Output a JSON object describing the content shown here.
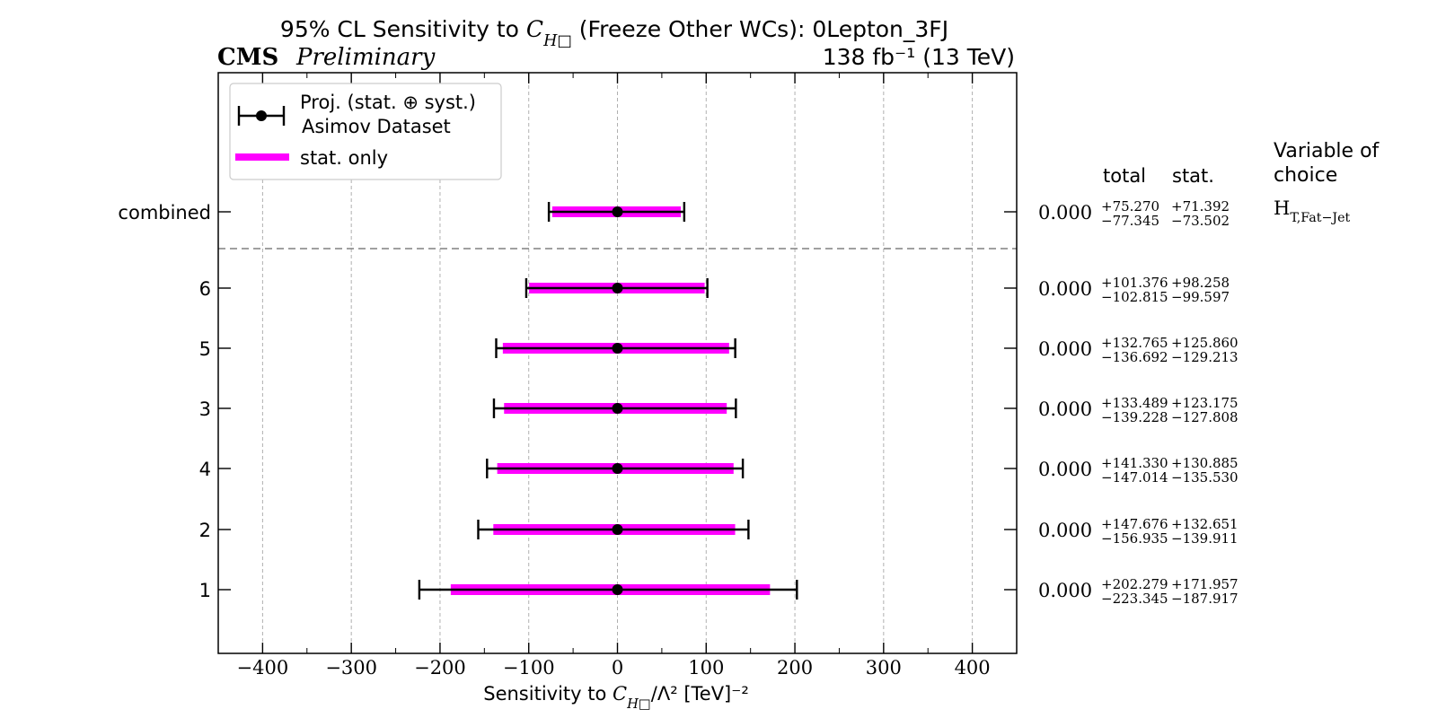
{
  "header": {
    "title": "95% CL Sensitivity to C_H□ (Freeze Other WCs): 0Lepton_3FJ",
    "experiment": "CMS",
    "status": "Preliminary",
    "lumi": "138 fb⁻¹ (13 TeV)"
  },
  "legend": {
    "proj_line1": "Proj. (stat. ⊕ syst.)",
    "proj_line2": "Asimov Dataset",
    "stat_label": "stat. only",
    "placement": "top-left"
  },
  "table": {
    "total_header": "total",
    "stat_header": "stat.",
    "variable_header_line1": "Variable of",
    "variable_header_line2": "choice",
    "variable": "H_T,Fat−Jet"
  },
  "colors": {
    "stat_band": "#ff00ff",
    "total_bar": "#000000",
    "separator": "#808080",
    "grid": "#b0b0b0"
  },
  "chart_data": {
    "type": "errorbar",
    "title": "95% CL Sensitivity to C_H□ (Freeze Other WCs): 0Lepton_3FJ",
    "xlabel": "Sensitivity to C_H□/Λ² [TeV]⁻²",
    "xlim": [
      -450,
      450
    ],
    "xticks": [
      -400,
      -300,
      -200,
      -100,
      0,
      100,
      200,
      300,
      400
    ],
    "grid": true,
    "rows": [
      {
        "label": "combined",
        "center": 0.0,
        "center_text": "0.000",
        "total_up": 75.27,
        "total_down": -77.345,
        "stat_up": 71.392,
        "stat_down": -73.502,
        "total_up_text": "+75.270",
        "total_down_text": "−77.345",
        "stat_up_text": "+71.392",
        "stat_down_text": "−73.502"
      },
      {
        "label": "6",
        "center": 0.0,
        "center_text": "0.000",
        "total_up": 101.376,
        "total_down": -102.815,
        "stat_up": 98.258,
        "stat_down": -99.597,
        "total_up_text": "+101.376",
        "total_down_text": "−102.815",
        "stat_up_text": "+98.258",
        "stat_down_text": "−99.597"
      },
      {
        "label": "5",
        "center": 0.0,
        "center_text": "0.000",
        "total_up": 132.765,
        "total_down": -136.692,
        "stat_up": 125.86,
        "stat_down": -129.213,
        "total_up_text": "+132.765",
        "total_down_text": "−136.692",
        "stat_up_text": "+125.860",
        "stat_down_text": "−129.213"
      },
      {
        "label": "3",
        "center": 0.0,
        "center_text": "0.000",
        "total_up": 133.489,
        "total_down": -139.228,
        "stat_up": 123.175,
        "stat_down": -127.808,
        "total_up_text": "+133.489",
        "total_down_text": "−139.228",
        "stat_up_text": "+123.175",
        "stat_down_text": "−127.808"
      },
      {
        "label": "4",
        "center": 0.0,
        "center_text": "0.000",
        "total_up": 141.33,
        "total_down": -147.014,
        "stat_up": 130.885,
        "stat_down": -135.53,
        "total_up_text": "+141.330",
        "total_down_text": "−147.014",
        "stat_up_text": "+130.885",
        "stat_down_text": "−135.530"
      },
      {
        "label": "2",
        "center": 0.0,
        "center_text": "0.000",
        "total_up": 147.676,
        "total_down": -156.935,
        "stat_up": 132.651,
        "stat_down": -139.911,
        "total_up_text": "+147.676",
        "total_down_text": "−156.935",
        "stat_up_text": "+132.651",
        "stat_down_text": "−139.911"
      },
      {
        "label": "1",
        "center": 0.0,
        "center_text": "0.000",
        "total_up": 202.279,
        "total_down": -223.345,
        "stat_up": 171.957,
        "stat_down": -187.917,
        "total_up_text": "+202.279",
        "total_down_text": "−223.345",
        "stat_up_text": "+171.957",
        "stat_down_text": "−187.917"
      }
    ]
  }
}
